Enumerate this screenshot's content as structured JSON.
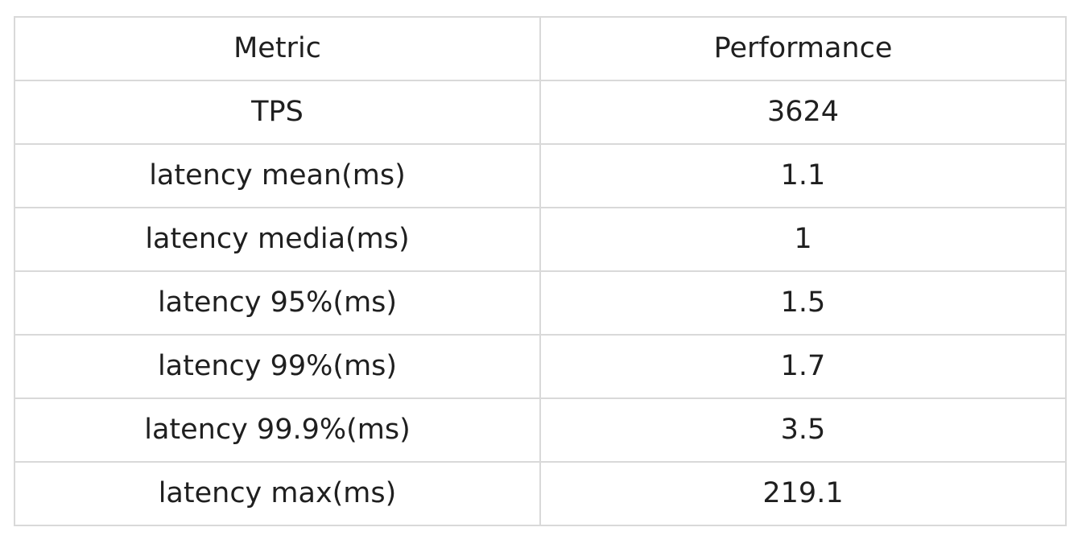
{
  "table": {
    "headers": [
      "Metric",
      "Performance"
    ],
    "rows": [
      [
        "TPS",
        "3624"
      ],
      [
        "latency mean(ms)",
        "1.1"
      ],
      [
        "latency media(ms)",
        "1"
      ],
      [
        "latency 95%(ms)",
        "1.5"
      ],
      [
        "latency 99%(ms)",
        "1.7"
      ],
      [
        "latency 99.9%(ms)",
        "3.5"
      ],
      [
        "latency max(ms)",
        "219.1"
      ]
    ]
  }
}
